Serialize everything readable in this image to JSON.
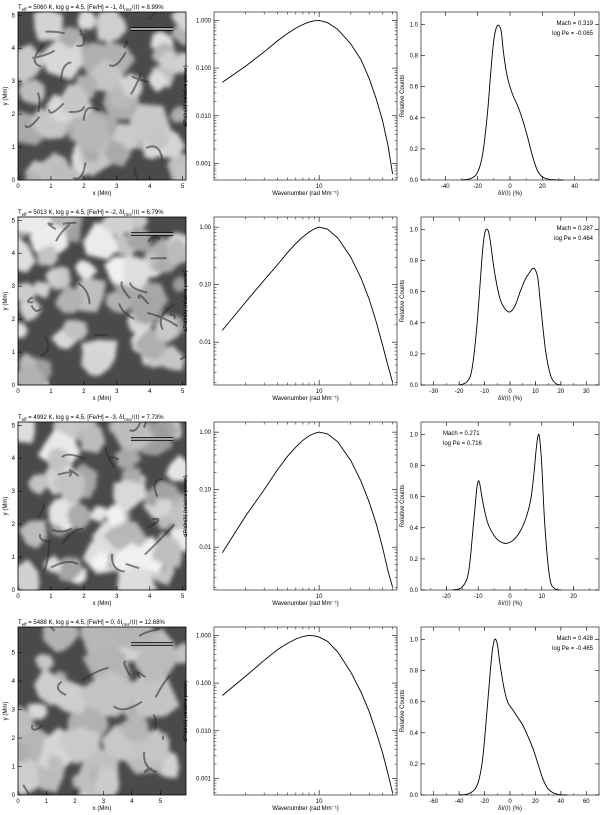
{
  "figure": {
    "rows": [
      {
        "title_main": "T",
        "title_sub": "eff",
        "title_rest": " = 5060 K, log g = 4.5, [Fe/H] = -1, δI",
        "title_sub2": "rms",
        "title_tail": "/⟨I⟩ = 8.99%",
        "image": {
          "xlabel": "x (Mm)",
          "ylabel": "y (Mm)",
          "xticks": [
            "0",
            "1",
            "2",
            "3",
            "4",
            "5"
          ],
          "yticks": [
            "0",
            "1",
            "2",
            "3",
            "4",
            "5"
          ],
          "xmax": 5.1,
          "ymax": 5.1,
          "seed": 11,
          "cells": 60,
          "contrast": 0.55
        },
        "power": {
          "xlabel": "Wavenumber (rad Mm⁻¹)",
          "ylabel": "dP/dln(k) (relative power)",
          "yticks": [
            "1.000",
            "0.100",
            "0.010",
            "0.001"
          ],
          "ytick_values": [
            1,
            0.1,
            0.01,
            0.001
          ],
          "ymin": 0.00045,
          "ymax": 1.5,
          "xtick_label": "10",
          "x": [
            1.2,
            2,
            3,
            4,
            5,
            6,
            7,
            8,
            9,
            10,
            12,
            15,
            20,
            25,
            30,
            35,
            40,
            45,
            50
          ],
          "y": [
            0.05,
            0.11,
            0.22,
            0.37,
            0.53,
            0.69,
            0.82,
            0.92,
            0.98,
            1.0,
            0.9,
            0.65,
            0.32,
            0.15,
            0.06,
            0.022,
            0.008,
            0.0025,
            0.0006
          ]
        },
        "hist": {
          "xlabel": "δI/⟨I⟩ (%)",
          "ylabel": "Relative Counts",
          "xticks": [
            -40,
            -20,
            0,
            20,
            40
          ],
          "xmin": -55,
          "xmax": 55,
          "yticks": [
            "0.0",
            "0.2",
            "0.4",
            "0.6",
            "0.8",
            "1.0"
          ],
          "annot1": "Mach = 0.319",
          "annot2": "log Pe = -0.065",
          "x": [
            -30,
            -24,
            -20,
            -17,
            -14,
            -12,
            -10,
            -8,
            -6,
            -5,
            -4,
            -2,
            0,
            2,
            5,
            8,
            11,
            14,
            17,
            20,
            24,
            28,
            33
          ],
          "y": [
            0,
            0.01,
            0.05,
            0.16,
            0.42,
            0.68,
            0.9,
            0.99,
            0.98,
            0.92,
            0.82,
            0.68,
            0.6,
            0.54,
            0.47,
            0.38,
            0.27,
            0.15,
            0.06,
            0.02,
            0.005,
            0.001,
            0
          ]
        }
      },
      {
        "title_main": "T",
        "title_sub": "eff",
        "title_rest": " = 5013 K, log g = 4.5, [Fe/H] = -2, δI",
        "title_sub2": "rms",
        "title_tail": "/⟨I⟩ = 6.79%",
        "image": {
          "xlabel": "x (Mm)",
          "ylabel": "y (Mm)",
          "xticks": [
            "0",
            "1",
            "2",
            "3",
            "4",
            "5"
          ],
          "yticks": [
            "0",
            "1",
            "2",
            "3",
            "4",
            "5"
          ],
          "xmax": 5.1,
          "ymax": 5.1,
          "seed": 23,
          "cells": 55,
          "contrast": 0.85
        },
        "power": {
          "xlabel": "Wavenumber (rad Mm⁻¹)",
          "ylabel": "dP/dln(k) (relative power)",
          "yticks": [
            "1.00",
            "0.10",
            "0.01"
          ],
          "ytick_values": [
            1,
            0.1,
            0.01
          ],
          "ymin": 0.0018,
          "ymax": 1.5,
          "xtick_label": "10",
          "x": [
            1.2,
            2,
            3,
            4,
            5,
            6,
            7,
            8,
            9,
            10,
            12,
            15,
            20,
            25,
            30,
            35,
            40,
            45,
            50
          ],
          "y": [
            0.016,
            0.05,
            0.12,
            0.22,
            0.36,
            0.52,
            0.68,
            0.82,
            0.93,
            1.0,
            0.92,
            0.65,
            0.3,
            0.13,
            0.055,
            0.022,
            0.009,
            0.004,
            0.002
          ]
        },
        "hist": {
          "xlabel": "δI/⟨I⟩ (%)",
          "ylabel": "Relative Counts",
          "xticks": [
            -30,
            -20,
            -10,
            0,
            10,
            20,
            30
          ],
          "xmin": -35,
          "xmax": 35,
          "yticks": [
            "0.0",
            "0.2",
            "0.4",
            "0.6",
            "0.8",
            "1.0"
          ],
          "annot1": "Mach = 0.287",
          "annot2": "log Pe = 0.464",
          "x": [
            -20,
            -17,
            -15,
            -13,
            -11,
            -10,
            -9,
            -8,
            -6,
            -4,
            -2,
            0,
            2,
            4,
            6,
            8,
            9,
            10,
            11,
            12,
            14,
            16,
            18,
            20
          ],
          "y": [
            0,
            0.02,
            0.1,
            0.38,
            0.82,
            0.97,
            1.0,
            0.95,
            0.72,
            0.56,
            0.49,
            0.47,
            0.51,
            0.6,
            0.68,
            0.73,
            0.75,
            0.74,
            0.68,
            0.52,
            0.22,
            0.06,
            0.01,
            0
          ]
        }
      },
      {
        "title_main": "T",
        "title_sub": "eff",
        "title_rest": " = 4992 K, log g = 4.5, [Fe/H] = -3, δI",
        "title_sub2": "rms",
        "title_tail": "/⟨I⟩ = 7.73%",
        "image": {
          "xlabel": "x (Mm)",
          "ylabel": "y (Mm)",
          "xticks": [
            "0",
            "1",
            "2",
            "3",
            "4",
            "5"
          ],
          "yticks": [
            "0",
            "1",
            "2",
            "3",
            "4",
            "5"
          ],
          "xmax": 5.1,
          "ymax": 5.1,
          "seed": 37,
          "cells": 58,
          "contrast": 0.9
        },
        "power": {
          "xlabel": "Wavenumber (rad Mm⁻¹)",
          "ylabel": "dP/dln(k) (relative power)",
          "yticks": [
            "1.00",
            "0.10",
            "0.01"
          ],
          "ytick_values": [
            1,
            0.1,
            0.01
          ],
          "ymin": 0.0018,
          "ymax": 1.5,
          "xtick_label": "10",
          "x": [
            1.2,
            2,
            3,
            4,
            5,
            6,
            7,
            8,
            9,
            10,
            12,
            15,
            20,
            25,
            30,
            35,
            40,
            45,
            50
          ],
          "y": [
            0.008,
            0.035,
            0.1,
            0.22,
            0.38,
            0.55,
            0.72,
            0.86,
            0.95,
            1.0,
            0.93,
            0.68,
            0.32,
            0.14,
            0.06,
            0.025,
            0.01,
            0.004,
            0.002
          ]
        },
        "hist": {
          "xlabel": "δI/⟨I⟩ (%)",
          "ylabel": "Relative Counts",
          "xticks": [
            -20,
            -10,
            0,
            10,
            20
          ],
          "xmin": -28,
          "xmax": 28,
          "yticks": [
            "0.0",
            "0.2",
            "0.4",
            "0.6",
            "0.8",
            "1.0"
          ],
          "annot1": "Mach = 0.271",
          "annot2": "log Pe = 0.716",
          "x": [
            -18,
            -15,
            -13,
            -11.5,
            -10.5,
            -10,
            -9.5,
            -8.5,
            -7,
            -5,
            -3,
            -1,
            1,
            3,
            5,
            6.5,
            7.5,
            8.2,
            8.8,
            9.3,
            10,
            11,
            12.5,
            14,
            16
          ],
          "y": [
            0,
            0.02,
            0.12,
            0.42,
            0.64,
            0.7,
            0.68,
            0.56,
            0.43,
            0.35,
            0.31,
            0.3,
            0.32,
            0.37,
            0.46,
            0.58,
            0.74,
            0.9,
            0.99,
            0.98,
            0.8,
            0.4,
            0.08,
            0.01,
            0
          ]
        }
      },
      {
        "title_main": "T",
        "title_sub": "eff",
        "title_rest": " = 5488 K, log g = 4.5, [Fe/H] = 0, δI",
        "title_sub2": "rms",
        "title_tail": "/⟨I⟩ = 12.68%",
        "image": {
          "xlabel": "x (Mm)",
          "ylabel": "y (Mm)",
          "xticks": [
            "0",
            "1",
            "2",
            "3",
            "4",
            "5"
          ],
          "yticks": [
            "0",
            "1",
            "2",
            "3",
            "4",
            "5"
          ],
          "xmax": 5.9,
          "ymax": 5.9,
          "seed": 53,
          "cells": 42,
          "contrast": 0.45
        },
        "power": {
          "xlabel": "Wavenumber (rad Mm⁻¹)",
          "ylabel": "dP/dln(k) (relative power)",
          "yticks": [
            "1.000",
            "0.100",
            "0.010",
            "0.001"
          ],
          "ytick_values": [
            1,
            0.1,
            0.01,
            0.001
          ],
          "ymin": 0.00045,
          "ymax": 1.5,
          "xtick_label": "10",
          "x": [
            1.2,
            2,
            3,
            4,
            5,
            6,
            7,
            8,
            9,
            10,
            12,
            15,
            20,
            25,
            30,
            35,
            40,
            45,
            50
          ],
          "y": [
            0.055,
            0.14,
            0.3,
            0.5,
            0.68,
            0.84,
            0.95,
            1.0,
            0.98,
            0.92,
            0.75,
            0.45,
            0.17,
            0.065,
            0.025,
            0.009,
            0.0035,
            0.0013,
            0.0005
          ]
        },
        "hist": {
          "xlabel": "δI/⟨I⟩ (%)",
          "ylabel": "Relative Counts",
          "xticks": [
            -60,
            -40,
            -20,
            0,
            20,
            40,
            60
          ],
          "xmin": -70,
          "xmax": 70,
          "yticks": [
            "0.0",
            "0.2",
            "0.4",
            "0.6",
            "0.8",
            "1.0"
          ],
          "annot1": "Mach = 0.428",
          "annot2": "log Pe = -0.465",
          "x": [
            -40,
            -32,
            -26,
            -22,
            -19,
            -16,
            -14,
            -12,
            -10,
            -8,
            -5,
            -2,
            2,
            6,
            10,
            14,
            18,
            22,
            26,
            30,
            35,
            40,
            45
          ],
          "y": [
            0,
            0.01,
            0.06,
            0.2,
            0.45,
            0.75,
            0.92,
            1.0,
            0.97,
            0.85,
            0.7,
            0.6,
            0.55,
            0.5,
            0.45,
            0.38,
            0.3,
            0.2,
            0.1,
            0.04,
            0.01,
            0.002,
            0
          ]
        }
      }
    ]
  }
}
